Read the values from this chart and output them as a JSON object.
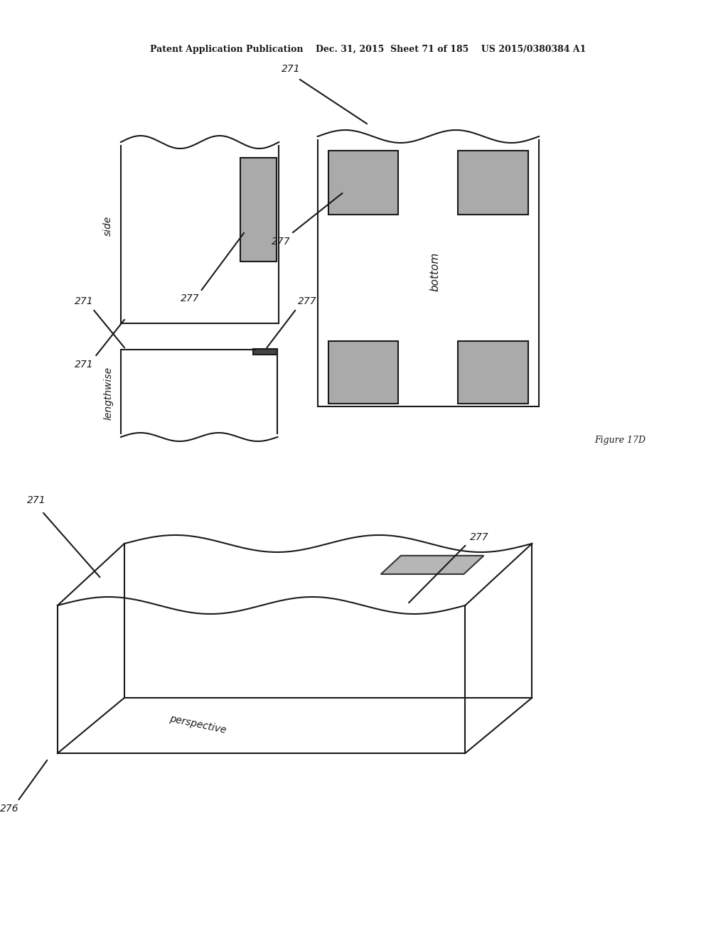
{
  "bg_color": "#ffffff",
  "line_color": "#1a1a1a",
  "gray_fill": "#aaaaaa",
  "header_text": "Patent Application Publication    Dec. 31, 2015  Sheet 71 of 185    US 2015/0380384 A1",
  "figure_label": "Figure 17D",
  "label_271": "271",
  "label_277": "277",
  "label_276": "276",
  "label_side": "side",
  "label_bottom": "bottom",
  "label_lengthwise": "lengthwise",
  "label_perspective": "perspective"
}
